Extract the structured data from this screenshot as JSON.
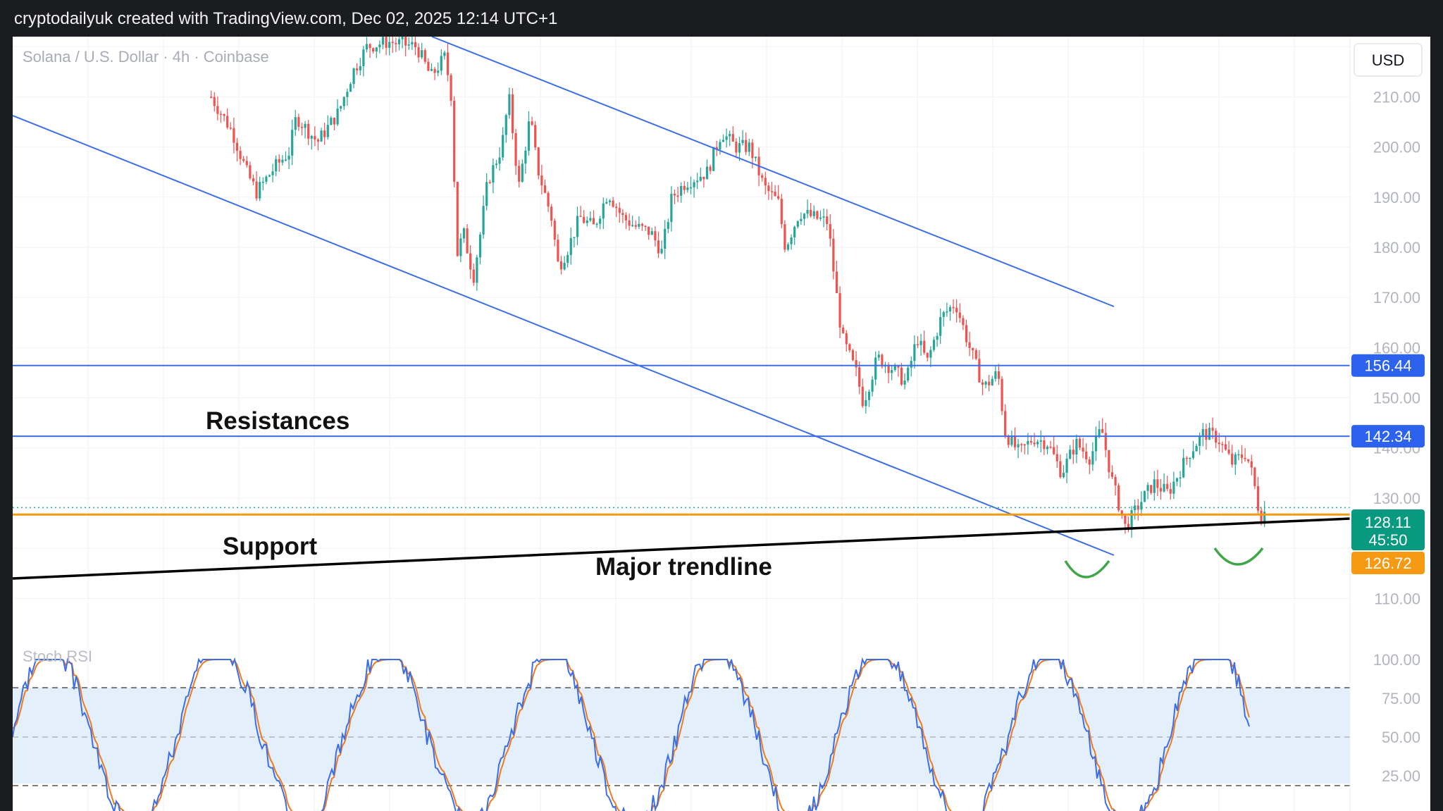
{
  "header": {
    "watermark": "cryptodailyuk created with TradingView.com, Dec 02, 2025 12:14 UTC+1"
  },
  "chart_data": {
    "type": "candlestick",
    "title": "Solana / U.S. Dollar · 4h · Coinbase",
    "currency_label": "USD",
    "ylim": [
      104,
      222
    ],
    "y_ticks": [
      "210.00",
      "200.00",
      "190.00",
      "180.00",
      "170.00",
      "160.00",
      "150.00",
      "140.00",
      "130.00",
      "110.00"
    ],
    "colors": {
      "up": "#26a69a",
      "down": "#ef5350",
      "channel": "#3d6ee8",
      "support": "#f59a12",
      "trendline": "#000000",
      "marker": "#3fa64a",
      "rsi_k": "#3d6ee8",
      "rsi_d": "#f07a1a",
      "rsi_band": "#e3f0fc"
    },
    "horizontal_levels": [
      {
        "name": "resistance-1",
        "value": 156.44,
        "label": "156.44"
      },
      {
        "name": "resistance-2",
        "value": 142.34,
        "label": "142.34"
      },
      {
        "name": "support",
        "value": 126.72,
        "label": "126.72"
      }
    ],
    "current_price": {
      "value": 128.11,
      "label": "128.11",
      "countdown": "45:50"
    },
    "annotations": [
      {
        "name": "resistances-label",
        "text": "Resistances"
      },
      {
        "name": "support-label",
        "text": "Support"
      },
      {
        "name": "major-trendline-label",
        "text": "Major trendline"
      }
    ],
    "price_path": [
      [
        0.14,
        210
      ],
      [
        0.155,
        203
      ],
      [
        0.165,
        195
      ],
      [
        0.172,
        191
      ],
      [
        0.185,
        196
      ],
      [
        0.195,
        199
      ],
      [
        0.2,
        206
      ],
      [
        0.215,
        201
      ],
      [
        0.23,
        207
      ],
      [
        0.24,
        215
      ],
      [
        0.25,
        220
      ],
      [
        0.265,
        221
      ],
      [
        0.285,
        220
      ],
      [
        0.295,
        214
      ],
      [
        0.305,
        218
      ],
      [
        0.31,
        209
      ],
      [
        0.313,
        178
      ],
      [
        0.318,
        183
      ],
      [
        0.325,
        174
      ],
      [
        0.33,
        183
      ],
      [
        0.335,
        193
      ],
      [
        0.345,
        200
      ],
      [
        0.35,
        210
      ],
      [
        0.357,
        192
      ],
      [
        0.365,
        206
      ],
      [
        0.37,
        196
      ],
      [
        0.38,
        186
      ],
      [
        0.385,
        176
      ],
      [
        0.392,
        180
      ],
      [
        0.4,
        186
      ],
      [
        0.41,
        184
      ],
      [
        0.42,
        191
      ],
      [
        0.43,
        186
      ],
      [
        0.44,
        184
      ],
      [
        0.45,
        183
      ],
      [
        0.458,
        179
      ],
      [
        0.465,
        190
      ],
      [
        0.475,
        193
      ],
      [
        0.49,
        195
      ],
      [
        0.5,
        203
      ],
      [
        0.51,
        200
      ],
      [
        0.52,
        200
      ],
      [
        0.53,
        192
      ],
      [
        0.54,
        189
      ],
      [
        0.545,
        180
      ],
      [
        0.555,
        187
      ],
      [
        0.565,
        186
      ],
      [
        0.575,
        185
      ],
      [
        0.58,
        173
      ],
      [
        0.585,
        162
      ],
      [
        0.595,
        155
      ],
      [
        0.6,
        149
      ],
      [
        0.61,
        158
      ],
      [
        0.62,
        156
      ],
      [
        0.63,
        153
      ],
      [
        0.638,
        162
      ],
      [
        0.645,
        157
      ],
      [
        0.655,
        166
      ],
      [
        0.665,
        169
      ],
      [
        0.675,
        160
      ],
      [
        0.685,
        152
      ],
      [
        0.695,
        155
      ],
      [
        0.7,
        143
      ],
      [
        0.71,
        139
      ],
      [
        0.72,
        142
      ],
      [
        0.73,
        141
      ],
      [
        0.74,
        135
      ],
      [
        0.75,
        141
      ],
      [
        0.76,
        138
      ],
      [
        0.768,
        144
      ],
      [
        0.775,
        134
      ],
      [
        0.785,
        124
      ],
      [
        0.795,
        129
      ],
      [
        0.805,
        133
      ],
      [
        0.815,
        131
      ],
      [
        0.83,
        139
      ],
      [
        0.84,
        143
      ],
      [
        0.85,
        142
      ],
      [
        0.86,
        137
      ],
      [
        0.87,
        139
      ],
      [
        0.875,
        134
      ],
      [
        0.88,
        126
      ],
      [
        0.885,
        128
      ]
    ],
    "stoch_rsi": {
      "label": "Stoch RSI",
      "ylim": [
        0,
        100
      ],
      "upper_band": 80,
      "lower_band": 20,
      "y_ticks": [
        "100.00",
        "75.00",
        "50.00",
        "25.00"
      ]
    }
  }
}
